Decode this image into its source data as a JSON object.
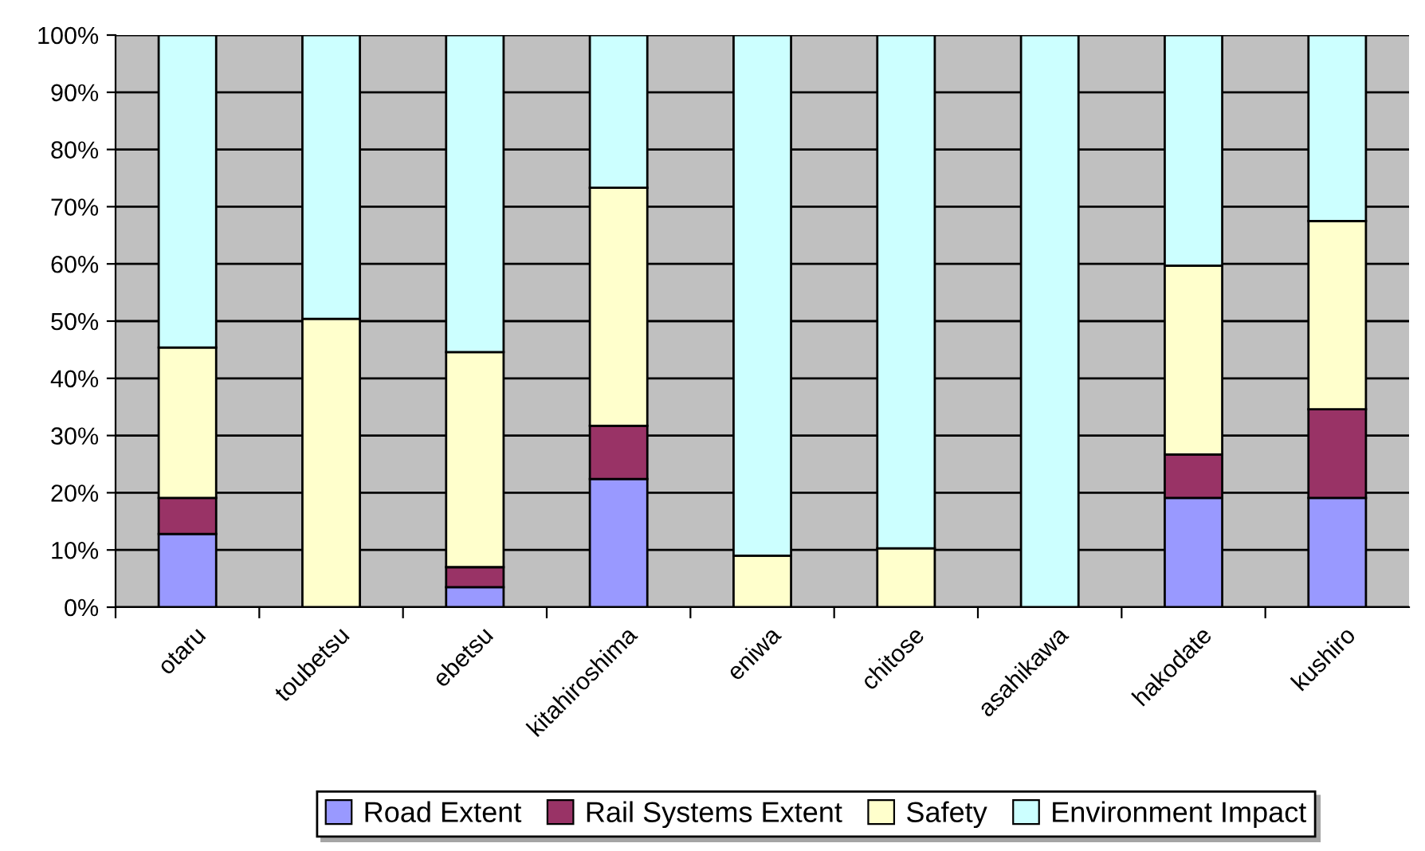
{
  "chart_data": {
    "type": "bar",
    "stacked": true,
    "categories": [
      "otaru",
      "toubetsu",
      "ebetsu",
      "kitahiroshima",
      "eniwa",
      "chitose",
      "asahikawa",
      "hakodate",
      "kushiro"
    ],
    "series": [
      {
        "name": "Road Extent",
        "color": "#9999ff",
        "values": [
          12.8,
          0,
          3.5,
          22.4,
          0,
          0,
          0,
          19.1,
          19.1
        ]
      },
      {
        "name": "Rail Systems Extent",
        "color": "#993366",
        "values": [
          6.3,
          0,
          3.5,
          9.3,
          0,
          0,
          0,
          7.6,
          15.5
        ]
      },
      {
        "name": "Safety",
        "color": "#ffffcc",
        "values": [
          26.3,
          50.4,
          37.6,
          41.6,
          9,
          10.3,
          0,
          33,
          32.9
        ]
      },
      {
        "name": "Environment Impact",
        "color": "#ccffff",
        "values": [
          54.6,
          49.6,
          55.4,
          26.7,
          91,
          89.7,
          100,
          40.3,
          32.5
        ]
      }
    ],
    "ylim": [
      0,
      100
    ],
    "yticks": [
      {
        "value": 0,
        "label": "0%"
      },
      {
        "value": 10,
        "label": "10%"
      },
      {
        "value": 20,
        "label": "20%"
      },
      {
        "value": 30,
        "label": "30%"
      },
      {
        "value": 40,
        "label": "40%"
      },
      {
        "value": 50,
        "label": "50%"
      },
      {
        "value": 60,
        "label": "60%"
      },
      {
        "value": 70,
        "label": "70%"
      },
      {
        "value": 80,
        "label": "80%"
      },
      {
        "value": 90,
        "label": "90%"
      },
      {
        "value": 100,
        "label": "100%"
      }
    ],
    "grid": "y",
    "legend": "bottom"
  }
}
